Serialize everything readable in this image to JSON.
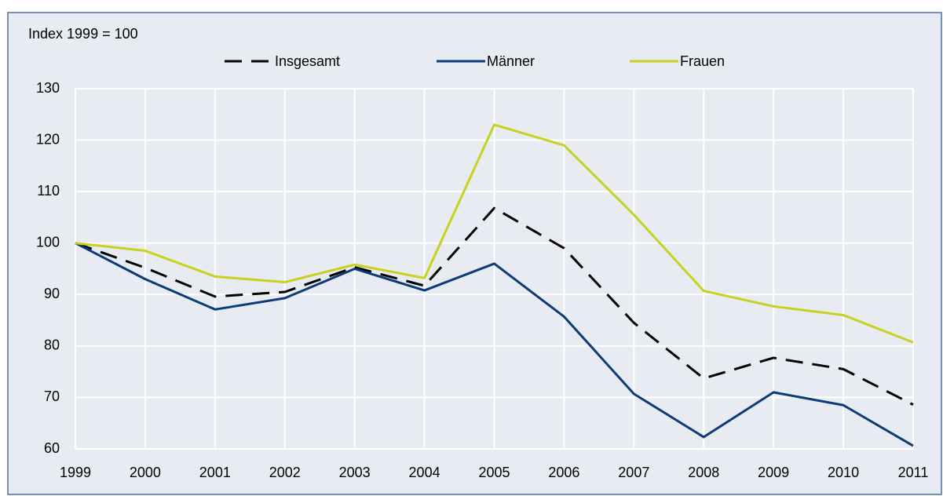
{
  "chart_data": {
    "type": "line",
    "annotation": "Index 1999 = 100",
    "categories": [
      "1999",
      "2000",
      "2001",
      "2002",
      "2003",
      "2004",
      "2005",
      "2006",
      "2007",
      "2008",
      "2009",
      "2010",
      "2011"
    ],
    "series": [
      {
        "name": "Insgesamt",
        "color": "#000000",
        "dash": "dashed",
        "values": [
          100,
          95.2,
          89.6,
          90.5,
          95.3,
          91.7,
          106.8,
          99,
          84.5,
          73.7,
          77.7,
          75.5,
          68.6
        ]
      },
      {
        "name": "Männer",
        "color": "#0c3c78",
        "dash": "solid",
        "values": [
          100,
          93,
          87.1,
          89.3,
          95,
          90.8,
          96,
          85.7,
          70.7,
          62.3,
          71,
          68.5,
          60.6
        ]
      },
      {
        "name": "Frauen",
        "color": "#c8d21e",
        "dash": "solid",
        "values": [
          100,
          98.5,
          93.5,
          92.4,
          95.8,
          93.2,
          123,
          119,
          105.5,
          90.7,
          87.7,
          86,
          80.7
        ]
      }
    ],
    "ylim": [
      60,
      130
    ],
    "yticks": [
      60,
      70,
      80,
      90,
      100,
      110,
      120,
      130
    ],
    "grid": true
  }
}
